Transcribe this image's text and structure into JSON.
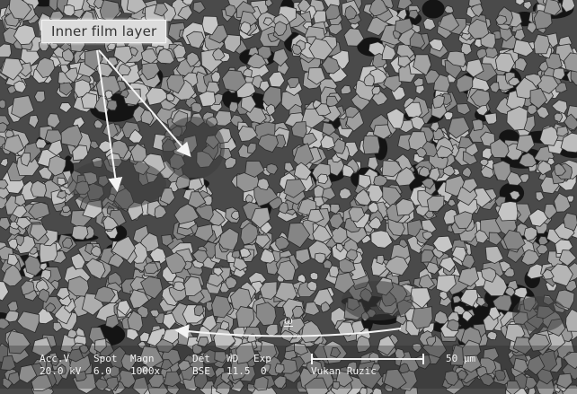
{
  "image": {
    "annotation_label": "Inner film layer",
    "arrow_label": "ω",
    "colors": {
      "background": "#4a4a4a",
      "grain": "#9a9a9a",
      "label_box": "#dcdcdc",
      "overlay_text": "#f2f2f2"
    }
  },
  "databar": {
    "headers": [
      "Acc.V",
      "Spot",
      "Magn",
      "Det",
      "WD",
      "Exp"
    ],
    "values": [
      "20.0 kV",
      "6.0",
      "1000x",
      "BSE",
      "11.5",
      "0"
    ],
    "operator": "Vukan Ruzic",
    "scale_label": "50 μm"
  }
}
